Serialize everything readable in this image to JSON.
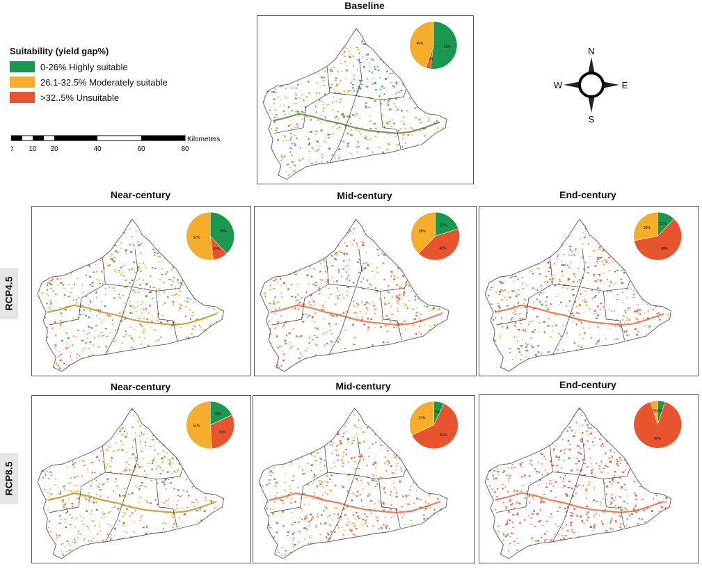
{
  "colors": {
    "high": "#1a9850",
    "moderate": "#f5ad2a",
    "unsuitable": "#e8542e",
    "boundary": "#555555"
  },
  "legend": {
    "title": "Suitability (yield gap%)",
    "items": [
      {
        "label": "0-26%  Highly suitable",
        "color": "#1a9850"
      },
      {
        "label": "26.1-32.5%  Moderately suitable",
        "color": "#f5ad2a"
      },
      {
        "label": ">32..5%  Unsuitable",
        "color": "#e8542e"
      }
    ]
  },
  "scale_bar": {
    "unit": "Kilometers",
    "ticks": [
      "0",
      "10",
      "20",
      "40",
      "60",
      "80"
    ]
  },
  "compass": {
    "n": "N",
    "s": "S",
    "e": "E",
    "w": "W"
  },
  "row_labels": [
    "RCP4.5",
    "RCP8.5"
  ],
  "maps": [
    {
      "title": "Baseline",
      "pie": {
        "high": 52,
        "moderate": 45,
        "unsuitable": 3
      },
      "labels": {
        "high": "52%",
        "moderate": "45%",
        "unsuitable": "3%"
      }
    },
    {
      "title": "Near-century",
      "pie": {
        "high": 38,
        "moderate": 52,
        "unsuitable": 10
      },
      "labels": {
        "high": "38%",
        "moderate": "52%",
        "unsuitable": "10%"
      }
    },
    {
      "title": "Mid-century",
      "pie": {
        "high": 20,
        "moderate": 38,
        "unsuitable": 42
      },
      "labels": {
        "high": "20%",
        "moderate": "38%",
        "unsuitable": "42%"
      }
    },
    {
      "title": "End-century",
      "pie": {
        "high": 12,
        "moderate": 28,
        "unsuitable": 60
      },
      "labels": {
        "high": "12%",
        "moderate": "28%",
        "unsuitable": "60%"
      }
    },
    {
      "title": "Near-century",
      "pie": {
        "high": 18,
        "moderate": 51,
        "unsuitable": 31
      },
      "labels": {
        "high": "18%",
        "moderate": "51%",
        "unsuitable": "31%"
      }
    },
    {
      "title": "Mid-century",
      "pie": {
        "high": 7,
        "moderate": 32,
        "unsuitable": 61
      },
      "labels": {
        "high": "7%",
        "moderate": "32%",
        "unsuitable": "61%"
      }
    },
    {
      "title": "End-century",
      "pie": {
        "high": 5,
        "moderate": 5,
        "unsuitable": 90
      },
      "labels": {
        "high": "5%",
        "moderate": "5%",
        "unsuitable": "90%"
      }
    }
  ]
}
